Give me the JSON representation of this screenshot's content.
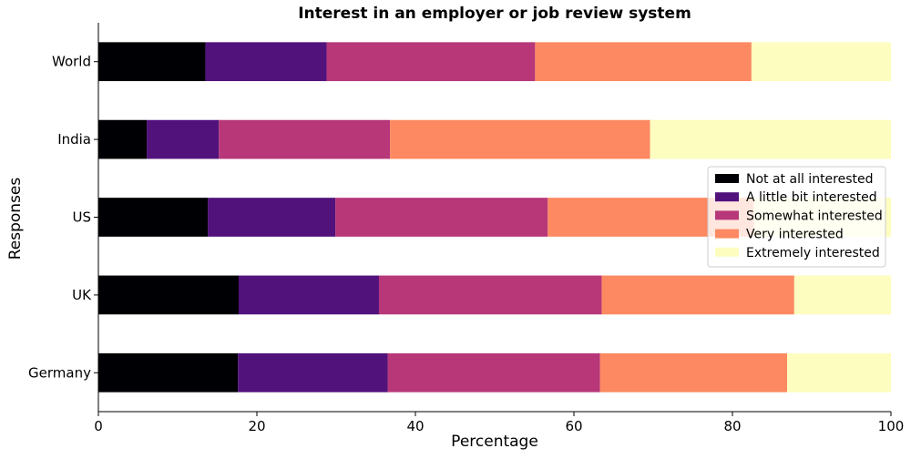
{
  "chart_data": {
    "type": "bar",
    "orientation": "horizontal",
    "stacked": true,
    "title": "Interest in an employer or job review system",
    "xlabel": "Percentage",
    "ylabel": "Responses",
    "xlim": [
      0,
      100
    ],
    "xticks": [
      "0",
      "20",
      "40",
      "60",
      "80",
      "100"
    ],
    "categories": [
      "World",
      "India",
      "US",
      "UK",
      "Germany"
    ],
    "series": [
      {
        "name": "Not at all interested",
        "color": "#000004",
        "values": [
          13.5,
          6.1,
          13.8,
          17.7,
          17.6
        ]
      },
      {
        "name": "A little bit interested",
        "color": "#51127c",
        "values": [
          15.3,
          9.1,
          16.1,
          17.7,
          18.9
        ]
      },
      {
        "name": "Somewhat interested",
        "color": "#b73779",
        "values": [
          26.3,
          21.6,
          26.8,
          28.1,
          26.8
        ]
      },
      {
        "name": "Very interested",
        "color": "#fc8961",
        "values": [
          27.3,
          32.8,
          26.0,
          24.3,
          23.6
        ]
      },
      {
        "name": "Extremely interested",
        "color": "#fcfdbf",
        "values": [
          17.6,
          30.4,
          17.3,
          12.2,
          13.1
        ]
      }
    ],
    "grid": false,
    "legend_position": "right"
  }
}
